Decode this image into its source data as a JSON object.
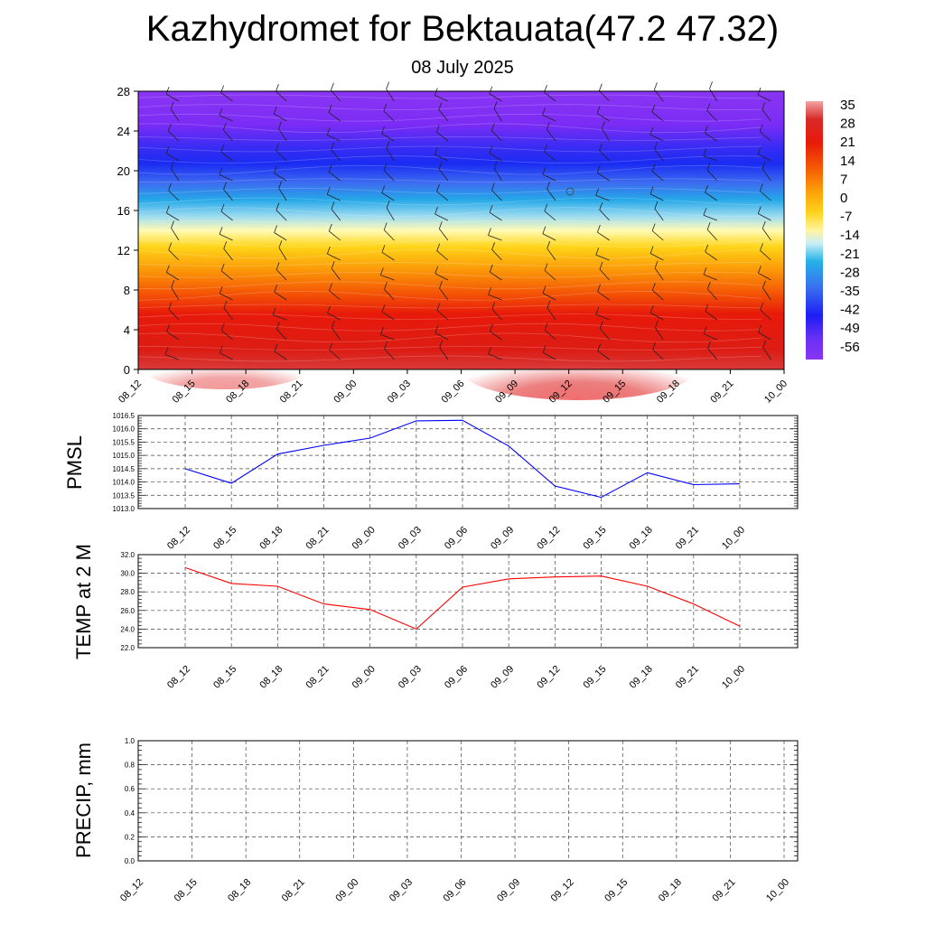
{
  "title": "Kazhydromet for Bektauata(47.2 47.32)",
  "subtitle": "08 July 2025",
  "time_labels": [
    "08_12",
    "08_15",
    "08_18",
    "08_21",
    "09_00",
    "09_03",
    "09_06",
    "09_09",
    "09_12",
    "09_15",
    "09_18",
    "09_21",
    "10_00"
  ],
  "chart_data": [
    {
      "type": "heatmap",
      "name": "temperature-height-section",
      "y_ticks": [
        0,
        4,
        8,
        12,
        16,
        20,
        24,
        28
      ],
      "ylim": [
        0,
        28
      ],
      "colorbar": {
        "labels": [
          "35",
          "28",
          "21",
          "14",
          "7",
          "0",
          "-7",
          "-14",
          "-21",
          "-28",
          "-35",
          "-42",
          "-49",
          "-56"
        ],
        "range": [
          -63,
          42
        ]
      },
      "grid": false,
      "wind_barbs": true
    },
    {
      "type": "line",
      "name": "pmsl",
      "ylabel": "PMSL",
      "y_ticks": [
        "1013.0",
        "1013.5",
        "1014.0",
        "1014.5",
        "1015.0",
        "1015.5",
        "1016.0",
        "1016.5"
      ],
      "ylim": [
        1013.0,
        1016.5
      ],
      "values": [
        1014.5,
        1013.95,
        1015.05,
        1015.38,
        1015.65,
        1016.3,
        1016.32,
        1015.35,
        1013.85,
        1013.42,
        1014.35,
        1013.9,
        1013.93
      ],
      "color": "#0000ff",
      "grid": true
    },
    {
      "type": "line",
      "name": "temp-2m",
      "ylabel": "TEMP at 2 M",
      "y_ticks": [
        "22.0",
        "24.0",
        "26.0",
        "28.0",
        "30.0",
        "32.0"
      ],
      "ylim": [
        22.0,
        32.0
      ],
      "values": [
        30.6,
        28.9,
        28.6,
        26.7,
        26.1,
        24.0,
        28.5,
        29.4,
        29.6,
        29.7,
        28.6,
        26.7,
        24.3
      ],
      "color": "#ff0000",
      "grid": true
    },
    {
      "type": "line",
      "name": "precip",
      "ylabel": "PRECIP, mm",
      "y_ticks": [
        "0.0",
        "0.2",
        "0.4",
        "0.6",
        "0.8",
        "1.0"
      ],
      "ylim": [
        0.0,
        1.0
      ],
      "values": [
        0,
        0,
        0,
        0,
        0,
        0,
        0,
        0,
        0,
        0,
        0,
        0,
        0
      ],
      "color": "#006400",
      "grid": true
    }
  ]
}
